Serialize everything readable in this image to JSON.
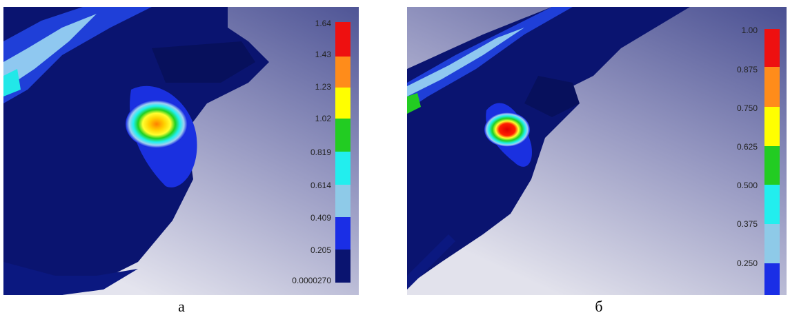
{
  "panels": [
    {
      "legend": [
        "1.64",
        "1.43",
        "1.23",
        "1.02",
        "0.819",
        "0.614",
        "0.409",
        "0.205",
        "0.0000270"
      ],
      "caption": "а"
    },
    {
      "legend": [
        "1.00",
        "0.875",
        "0.750",
        "0.625",
        "0.500",
        "0.375",
        "0.250"
      ],
      "caption": "б"
    }
  ]
}
